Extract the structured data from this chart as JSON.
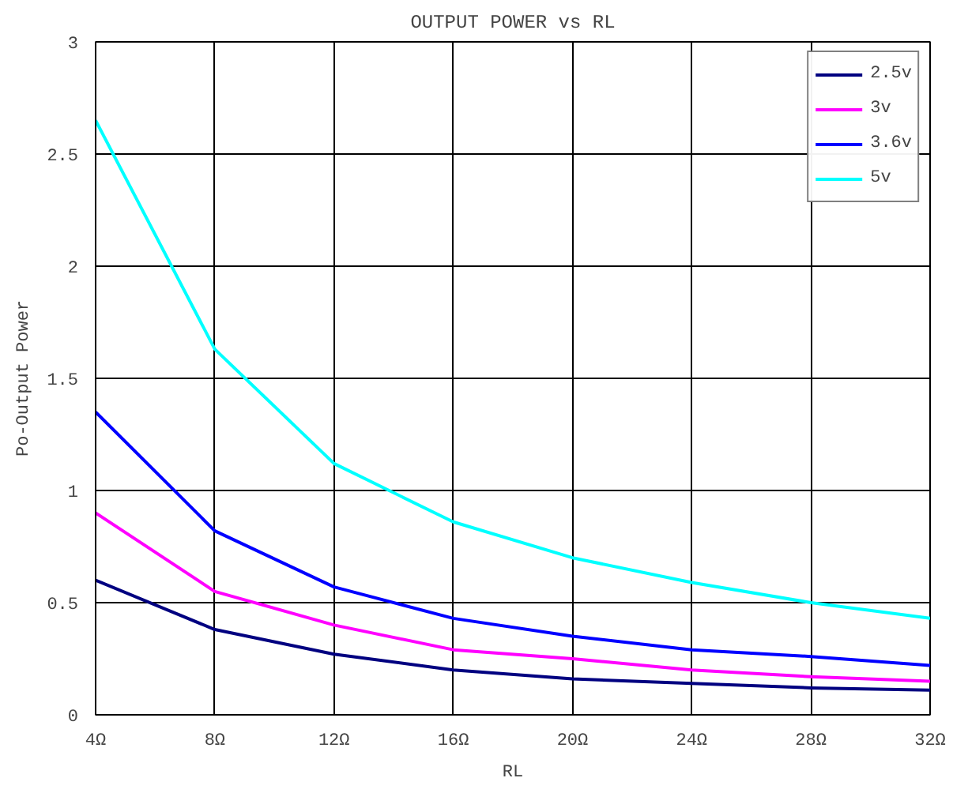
{
  "chart_data": {
    "type": "line",
    "title": "OUTPUT POWER vs RL",
    "xlabel": "RL",
    "ylabel": "Po-Output Power",
    "x": [
      4,
      8,
      12,
      16,
      20,
      24,
      28,
      32
    ],
    "xlim": [
      4,
      32
    ],
    "xticks": [
      {
        "value": 4,
        "label": "4Ω"
      },
      {
        "value": 8,
        "label": "8Ω"
      },
      {
        "value": 12,
        "label": "12Ω"
      },
      {
        "value": 16,
        "label": "16Ω"
      },
      {
        "value": 20,
        "label": "20Ω"
      },
      {
        "value": 24,
        "label": "24Ω"
      },
      {
        "value": 28,
        "label": "28Ω"
      },
      {
        "value": 32,
        "label": "32Ω"
      }
    ],
    "ylim": [
      0,
      3
    ],
    "yticks": [
      0,
      0.5,
      1,
      1.5,
      2,
      2.5,
      3
    ],
    "grid": true,
    "legend": "top right",
    "marker": "none",
    "line_style": "solid",
    "series": [
      {
        "name": "2.5v",
        "color": "#000080",
        "values": [
          0.6,
          0.38,
          0.27,
          0.2,
          0.16,
          0.14,
          0.12,
          0.11
        ]
      },
      {
        "name": "3v",
        "color": "#ff00ff",
        "values": [
          0.9,
          0.55,
          0.4,
          0.29,
          0.25,
          0.2,
          0.17,
          0.15
        ]
      },
      {
        "name": "3.6v",
        "color": "#0000ff",
        "values": [
          1.35,
          0.82,
          0.57,
          0.43,
          0.35,
          0.29,
          0.26,
          0.22
        ]
      },
      {
        "name": "5v",
        "color": "#00ffff",
        "values": [
          2.65,
          1.63,
          1.12,
          0.86,
          0.7,
          0.59,
          0.5,
          0.43
        ]
      }
    ]
  }
}
